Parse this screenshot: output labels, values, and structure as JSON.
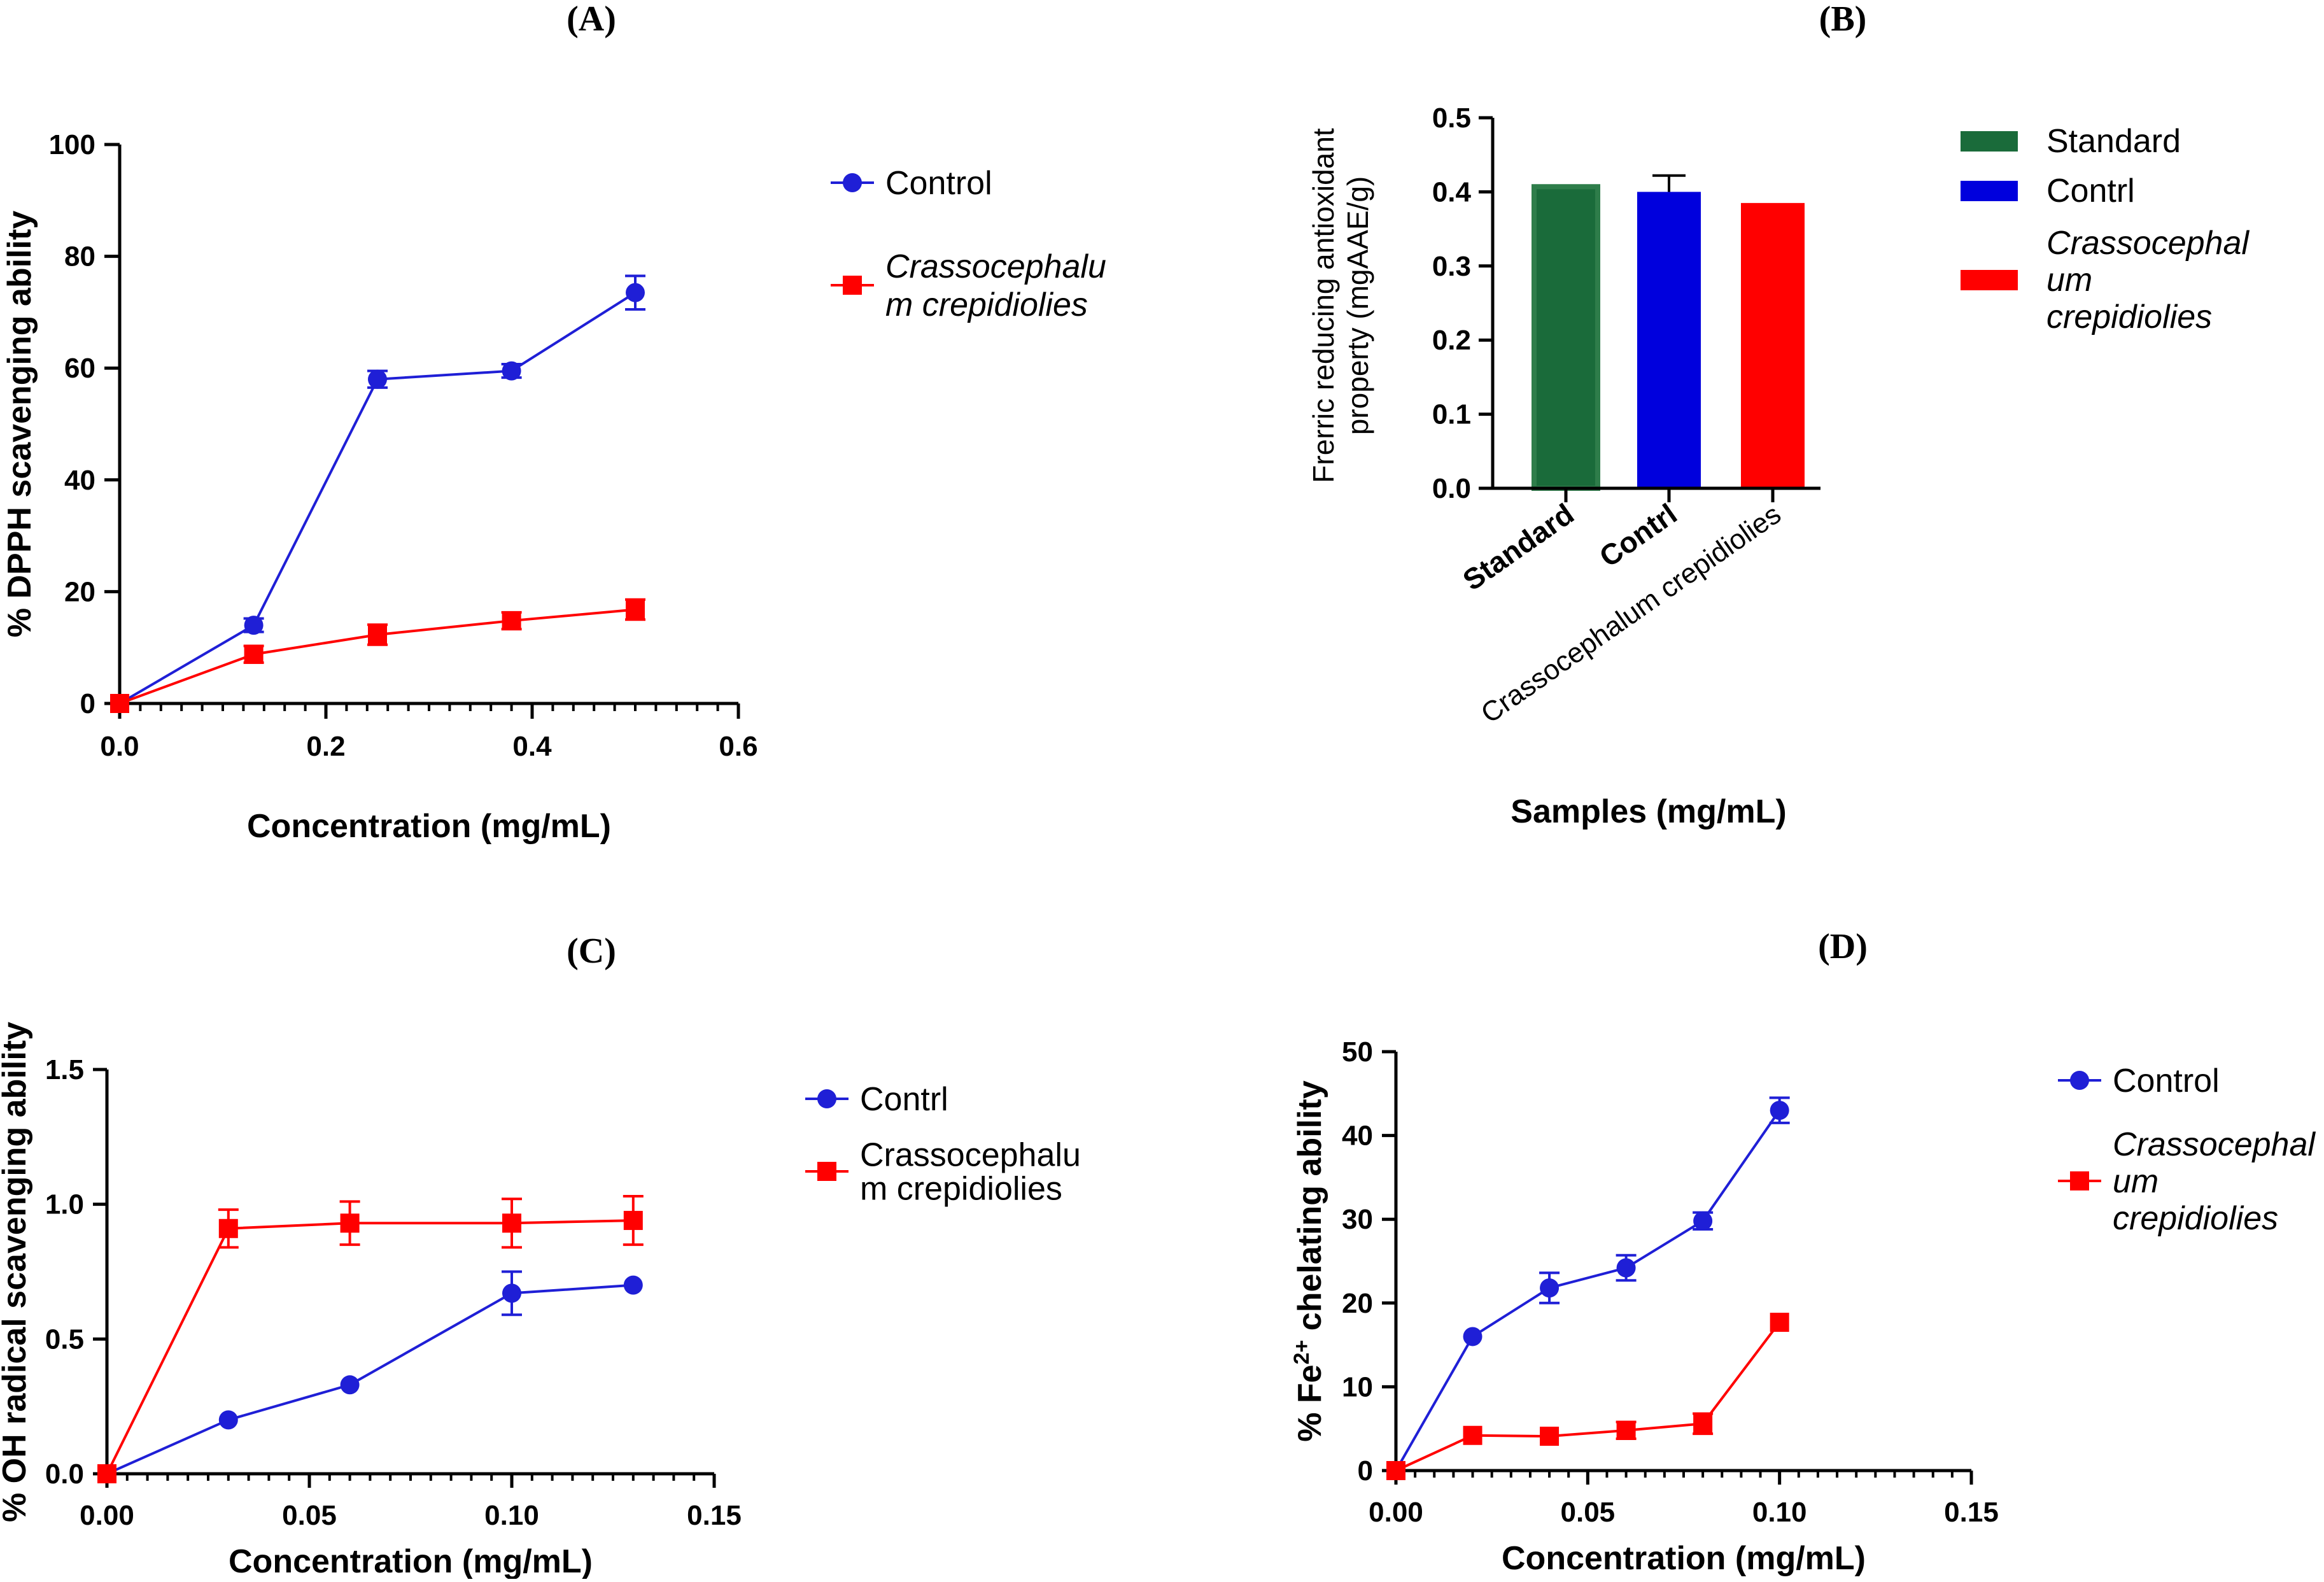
{
  "colors": {
    "blue": "#1f1fd6",
    "red": "#ff0000",
    "green": "#1a6b3a",
    "axis": "#000000"
  },
  "chart_data": [
    {
      "panel": "(A)",
      "type": "line",
      "xlabel": "Concentration (mg/mL)",
      "ylabel": "% DPPH scavenging ability",
      "xlim": [
        0,
        0.6
      ],
      "ylim": [
        0,
        100
      ],
      "xticks": [
        0,
        0.2,
        0.4,
        0.6
      ],
      "xtick_labels": [
        "0.0",
        "0.2",
        "0.4",
        "0.6"
      ],
      "yticks": [
        0,
        20,
        40,
        60,
        80,
        100
      ],
      "ytick_labels": [
        "0",
        "20",
        "40",
        "60",
        "80",
        "100"
      ],
      "x_minor_step": 0.02,
      "series": [
        {
          "name": "Control",
          "name_lines": [
            "Control"
          ],
          "italic": false,
          "color": "#1f1fd6",
          "marker": "circle",
          "x": [
            0,
            0.13,
            0.25,
            0.38,
            0.5
          ],
          "y": [
            0,
            14,
            58,
            59.5,
            73.5
          ],
          "err": [
            0,
            1.2,
            1.5,
            1.2,
            3
          ]
        },
        {
          "name": "Crassocephalum crepidiolies",
          "name_lines": [
            "Crassocephalu",
            "m crepidiolies"
          ],
          "italic": true,
          "color": "#ff0000",
          "marker": "square",
          "x": [
            0,
            0.13,
            0.25,
            0.38,
            0.5
          ],
          "y": [
            0,
            8.8,
            12.3,
            14.8,
            16.8
          ],
          "err": [
            0,
            1.5,
            1.8,
            1.5,
            1.8
          ]
        }
      ]
    },
    {
      "panel": "(B)",
      "type": "bar",
      "xlabel": "Samples (mg/mL)",
      "ylabel_lines": [
        "Frerric reducing antioxidant",
        "property  (mgAAE/g)"
      ],
      "ylim": [
        0,
        0.5
      ],
      "yticks": [
        0,
        0.1,
        0.2,
        0.3,
        0.4,
        0.5
      ],
      "ytick_labels": [
        "0.0",
        "0.1",
        "0.2",
        "0.3",
        "0.4",
        "0.5"
      ],
      "categories": [
        "Standard",
        "Contrl",
        "Crassocephalum crepidiolies"
      ],
      "category_bold": [
        true,
        true,
        false
      ],
      "values": [
        0.407,
        0.4,
        0.385
      ],
      "err": [
        0,
        0.022,
        0
      ],
      "bar_colors": [
        "#1a6b3a",
        "#0000dd",
        "#ff0000"
      ],
      "legend": [
        {
          "lines": [
            "Standard"
          ],
          "italic": false,
          "color": "#1a6b3a"
        },
        {
          "lines": [
            "Contrl"
          ],
          "italic": false,
          "color": "#0000dd"
        },
        {
          "lines": [
            "Crassocephal",
            "um",
            "crepidiolies"
          ],
          "italic": true,
          "color": "#ff0000"
        }
      ]
    },
    {
      "panel": "(C)",
      "type": "line",
      "xlabel": "Concentration (mg/mL)",
      "ylabel": "% OH radical scavenging ability",
      "xlim": [
        0,
        0.15
      ],
      "ylim": [
        0,
        1.5
      ],
      "xticks": [
        0,
        0.05,
        0.1,
        0.15
      ],
      "xtick_labels": [
        "0.00",
        "0.05",
        "0.10",
        "0.15"
      ],
      "yticks": [
        0,
        0.5,
        1,
        1.5
      ],
      "ytick_labels": [
        "0.0",
        "0.5",
        "1.0",
        "1.5"
      ],
      "x_minor_step": 0.005,
      "series": [
        {
          "name": "Contrl",
          "name_lines": [
            "Contrl"
          ],
          "italic": false,
          "color": "#1f1fd6",
          "marker": "circle",
          "x": [
            0,
            0.03,
            0.06,
            0.1,
            0.13
          ],
          "y": [
            0,
            0.2,
            0.33,
            0.67,
            0.7
          ],
          "err": [
            0,
            0,
            0,
            0.08,
            0
          ]
        },
        {
          "name": "Crassocephalum crepidiolies",
          "name_lines": [
            "Crassocephalu",
            "m crepidiolies"
          ],
          "italic": false,
          "color": "#ff0000",
          "marker": "square",
          "x": [
            0,
            0.03,
            0.06,
            0.1,
            0.13
          ],
          "y": [
            0,
            0.91,
            0.93,
            0.93,
            0.94
          ],
          "err": [
            0,
            0.07,
            0.08,
            0.09,
            0.09
          ]
        }
      ]
    },
    {
      "panel": "(D)",
      "type": "line",
      "xlabel": "Concentration (mg/mL)",
      "ylabel": "% Fe2+ chelating ability",
      "xlim": [
        0,
        0.15
      ],
      "ylim": [
        0,
        50
      ],
      "xticks": [
        0,
        0.05,
        0.1,
        0.15
      ],
      "xtick_labels": [
        "0.00",
        "0.05",
        "0.10",
        "0.15"
      ],
      "yticks": [
        0,
        10,
        20,
        30,
        40,
        50
      ],
      "ytick_labels": [
        "0",
        "10",
        "20",
        "30",
        "40",
        "50"
      ],
      "x_minor_step": 0.005,
      "series": [
        {
          "name": "Control",
          "name_lines": [
            "Control"
          ],
          "italic": false,
          "color": "#1f1fd6",
          "marker": "circle",
          "x": [
            0,
            0.02,
            0.04,
            0.06,
            0.08,
            0.1
          ],
          "y": [
            0,
            16,
            21.8,
            24.2,
            29.8,
            43
          ],
          "err": [
            0,
            0,
            1.8,
            1.5,
            1,
            1.5
          ]
        },
        {
          "name": "Crassocephalum crepidiolies",
          "name_lines": [
            "Crassocephal",
            "um",
            "crepidiolies"
          ],
          "italic": true,
          "color": "#ff0000",
          "marker": "square",
          "x": [
            0,
            0.02,
            0.04,
            0.06,
            0.08,
            0.1
          ],
          "y": [
            0,
            4.2,
            4.1,
            4.8,
            5.6,
            17.7
          ],
          "err": [
            0,
            0,
            0,
            1,
            1.2,
            0
          ]
        }
      ]
    }
  ]
}
